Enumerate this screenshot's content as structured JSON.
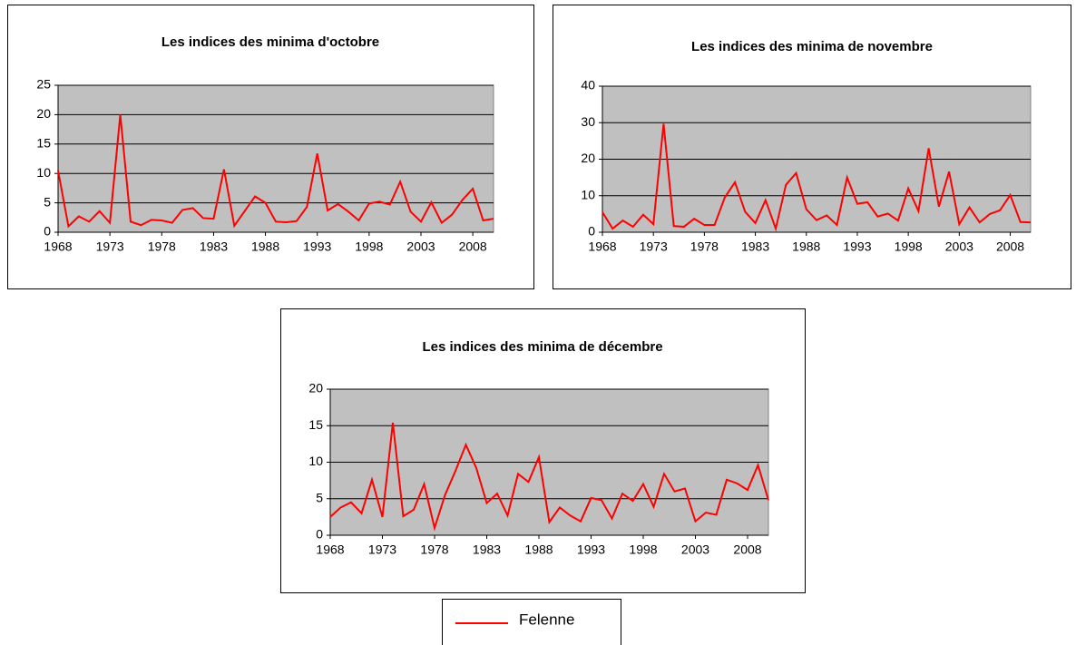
{
  "chart_data": [
    {
      "type": "line",
      "title": "Les indices des minima d'octobre",
      "x": [
        1968,
        1969,
        1970,
        1971,
        1972,
        1973,
        1974,
        1975,
        1976,
        1977,
        1978,
        1979,
        1980,
        1981,
        1982,
        1983,
        1984,
        1985,
        1986,
        1987,
        1988,
        1989,
        1990,
        1991,
        1992,
        1993,
        1994,
        1995,
        1996,
        1997,
        1998,
        1999,
        2000,
        2001,
        2002,
        2003,
        2004,
        2005,
        2006,
        2007,
        2008,
        2009,
        2010
      ],
      "series": [
        {
          "name": "Felenne",
          "color": "#ff0000",
          "values": [
            10.5,
            1,
            2.7,
            1.8,
            3.6,
            1.6,
            20,
            1.8,
            1.2,
            2.1,
            2,
            1.6,
            3.8,
            4.1,
            2.4,
            2.3,
            10.7,
            1.1,
            3.6,
            6.1,
            5,
            1.8,
            1.7,
            1.9,
            4.3,
            13.4,
            3.7,
            4.8,
            3.5,
            2,
            4.9,
            5.2,
            4.7,
            8.6,
            3.5,
            1.8,
            5.1,
            1.6,
            3,
            5.5,
            7.4,
            2,
            2.3
          ]
        }
      ],
      "xlim": [
        1968,
        2010
      ],
      "xticks": [
        1968,
        1973,
        1978,
        1983,
        1988,
        1993,
        1998,
        2003,
        2008
      ],
      "ylim": [
        0,
        25
      ],
      "yticks": [
        0,
        5,
        10,
        15,
        20,
        25
      ],
      "grid": true
    },
    {
      "type": "line",
      "title": "Les indices des minima de novembre",
      "x": [
        1968,
        1969,
        1970,
        1971,
        1972,
        1973,
        1974,
        1975,
        1976,
        1977,
        1978,
        1979,
        1980,
        1981,
        1982,
        1983,
        1984,
        1985,
        1986,
        1987,
        1988,
        1989,
        1990,
        1991,
        1992,
        1993,
        1994,
        1995,
        1996,
        1997,
        1998,
        1999,
        2000,
        2001,
        2002,
        2003,
        2004,
        2005,
        2006,
        2007,
        2008,
        2009,
        2010
      ],
      "series": [
        {
          "name": "Felenne",
          "color": "#ff0000",
          "values": [
            5.5,
            1,
            3.2,
            1.5,
            4.8,
            2.2,
            29.7,
            1.7,
            1.5,
            3.7,
            2,
            2,
            9.5,
            13.7,
            5.6,
            2.5,
            8.8,
            1,
            13,
            16.2,
            6.3,
            3.3,
            4.6,
            2,
            15,
            7.8,
            8.2,
            4.3,
            5.1,
            3.2,
            12,
            5.8,
            23,
            7,
            16.6,
            2.2,
            6.8,
            2.7,
            5,
            6,
            10.2,
            2.8,
            2.7
          ]
        }
      ],
      "xlim": [
        1968,
        2010
      ],
      "xticks": [
        1968,
        1973,
        1978,
        1983,
        1988,
        1993,
        1998,
        2003,
        2008
      ],
      "ylim": [
        0,
        40
      ],
      "yticks": [
        0,
        10,
        20,
        30,
        40
      ],
      "grid": true
    },
    {
      "type": "line",
      "title": "Les indices des minima de décembre",
      "x": [
        1968,
        1969,
        1970,
        1971,
        1972,
        1973,
        1974,
        1975,
        1976,
        1977,
        1978,
        1979,
        1980,
        1981,
        1982,
        1983,
        1984,
        1985,
        1986,
        1987,
        1988,
        1989,
        1990,
        1991,
        1992,
        1993,
        1994,
        1995,
        1996,
        1997,
        1998,
        1999,
        2000,
        2001,
        2002,
        2003,
        2004,
        2005,
        2006,
        2007,
        2008,
        2009,
        2010
      ],
      "series": [
        {
          "name": "Felenne",
          "color": "#ff0000",
          "values": [
            2.5,
            3.8,
            4.5,
            3,
            7.6,
            2.5,
            15.4,
            2.6,
            3.5,
            7,
            1,
            5.5,
            8.8,
            12.4,
            9.2,
            4.4,
            5.7,
            2.7,
            8.4,
            7.3,
            10.7,
            1.8,
            3.8,
            2.7,
            1.9,
            5.1,
            4.8,
            2.3,
            5.7,
            4.7,
            7,
            3.9,
            8.4,
            6,
            6.4,
            1.9,
            3.1,
            2.8,
            7.6,
            7.1,
            6.2,
            9.6,
            4.8
          ]
        }
      ],
      "xlim": [
        1968,
        2010
      ],
      "xticks": [
        1968,
        1973,
        1978,
        1983,
        1988,
        1993,
        1998,
        2003,
        2008
      ],
      "ylim": [
        0,
        20
      ],
      "yticks": [
        0,
        5,
        10,
        15,
        20
      ],
      "grid": true
    }
  ]
}
